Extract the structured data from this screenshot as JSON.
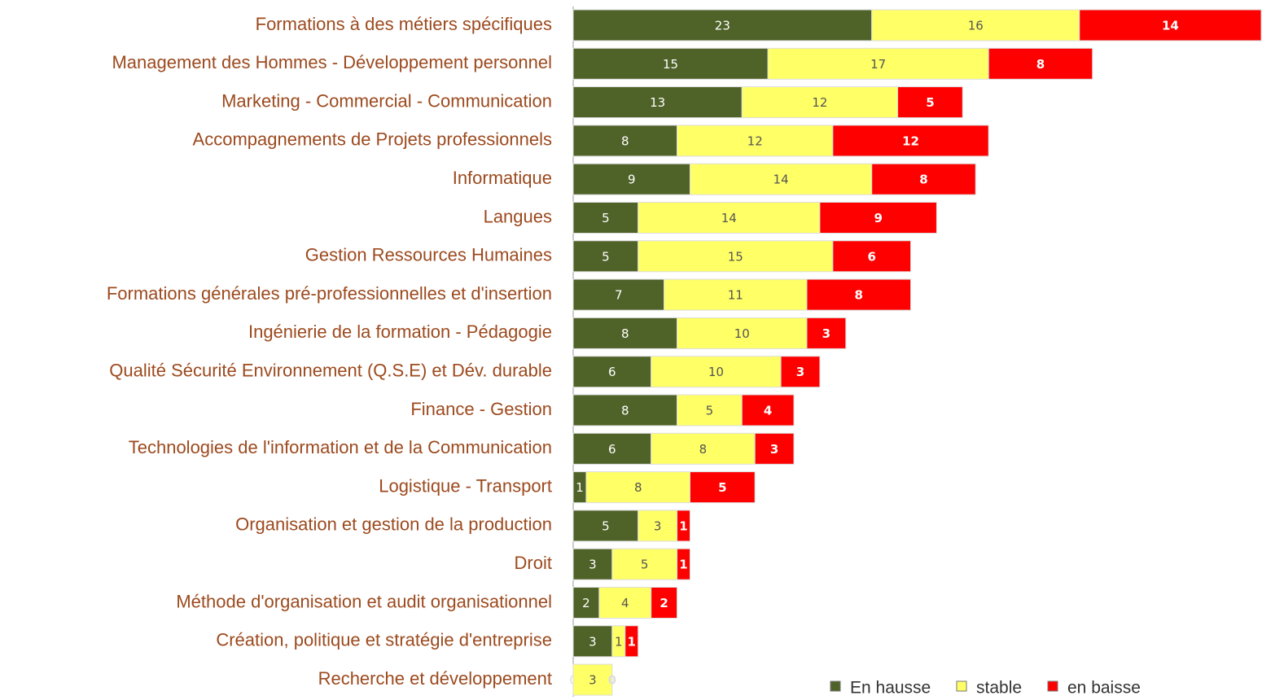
{
  "chart_data": {
    "type": "stacked-bar-horizontal",
    "categories": [
      "Formations à des métiers spécifiques",
      "Management des Hommes - Développement personnel",
      "Marketing - Commercial - Communication",
      "Accompagnements de Projets professionnels",
      "Informatique",
      "Langues",
      "Gestion Ressources Humaines",
      "Formations générales pré-professionnelles et d'insertion",
      "Ingénierie de la formation - Pédagogie",
      "Qualité Sécurité Environnement (Q.S.E) et Dév. durable",
      "Finance - Gestion",
      "Technologies de l'information et de la Communication",
      "Logistique - Transport",
      "Organisation et gestion de la production",
      "Droit",
      "Méthode d'organisation et audit organisationnel",
      "Création, politique et stratégie d'entreprise",
      "Recherche et développement"
    ],
    "series": [
      {
        "name": "En hausse",
        "color": "#4f6228",
        "values": [
          23,
          15,
          13,
          8,
          9,
          5,
          5,
          7,
          8,
          6,
          8,
          6,
          1,
          5,
          3,
          2,
          3,
          0
        ]
      },
      {
        "name": "stable",
        "color": "#ffff66",
        "values": [
          16,
          17,
          12,
          12,
          14,
          14,
          15,
          11,
          10,
          10,
          5,
          8,
          8,
          3,
          5,
          4,
          1,
          3
        ]
      },
      {
        "name": "en baisse",
        "color": "#ff0000",
        "values": [
          14,
          8,
          5,
          12,
          8,
          9,
          6,
          8,
          3,
          3,
          4,
          3,
          5,
          1,
          1,
          2,
          1,
          0
        ]
      }
    ],
    "legend": "bottom-right"
  }
}
